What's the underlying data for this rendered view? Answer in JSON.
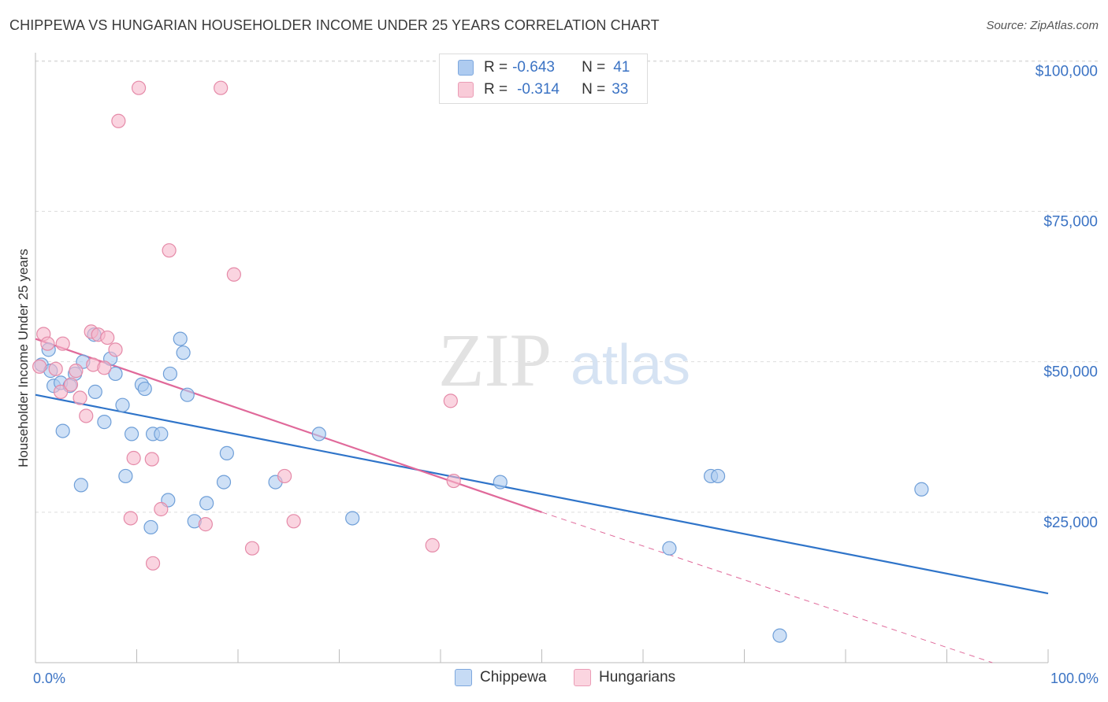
{
  "header": {
    "title": "CHIPPEWA VS HUNGARIAN HOUSEHOLDER INCOME UNDER 25 YEARS CORRELATION CHART",
    "source": "Source: ZipAtlas.com"
  },
  "watermark": {
    "zip": "ZIP",
    "atlas": "atlas"
  },
  "legend_top": {
    "rows": [
      {
        "r_label": "R =",
        "r_value": "-0.643",
        "n_label": "N =",
        "n_value": "41",
        "color": "#aecbf0"
      },
      {
        "r_label": "R =",
        "r_value": "-0.314",
        "n_label": "N =",
        "n_value": "33",
        "color": "#f6b8cb"
      }
    ]
  },
  "chart_data": {
    "type": "scatter",
    "title": "CHIPPEWA VS HUNGARIAN HOUSEHOLDER INCOME UNDER 25 YEARS CORRELATION CHART",
    "xlabel": "",
    "ylabel": "Householder Income Under 25 years",
    "xlim": [
      0,
      100
    ],
    "ylim": [
      0,
      102000
    ],
    "x_tick_labels": [
      "0.0%",
      "100.0%"
    ],
    "y_ticks": [
      25000,
      50000,
      75000,
      100000
    ],
    "y_tick_labels": [
      "$25,000",
      "$50,000",
      "$75,000",
      "$100,000"
    ],
    "grid": true,
    "legend_position": "bottom",
    "series": [
      {
        "name": "Chippewa",
        "color": "#aecbf0",
        "stroke": "#6f9fd8",
        "trend_color": "#2f74c9",
        "trend": {
          "x": [
            0,
            100
          ],
          "y": [
            44500,
            11500
          ]
        },
        "points": [
          [
            0.6,
            49500
          ],
          [
            1.3,
            52000
          ],
          [
            1.5,
            48500
          ],
          [
            1.8,
            46000
          ],
          [
            2.5,
            46500
          ],
          [
            2.7,
            38500
          ],
          [
            3.4,
            46000
          ],
          [
            3.9,
            48000
          ],
          [
            4.5,
            29500
          ],
          [
            4.7,
            50000
          ],
          [
            5.8,
            54500
          ],
          [
            5.9,
            45000
          ],
          [
            6.8,
            40000
          ],
          [
            7.4,
            50500
          ],
          [
            7.9,
            48000
          ],
          [
            8.6,
            42800
          ],
          [
            8.9,
            31000
          ],
          [
            9.5,
            38000
          ],
          [
            10.5,
            46200
          ],
          [
            10.8,
            45500
          ],
          [
            11.4,
            22500
          ],
          [
            11.6,
            38000
          ],
          [
            12.4,
            38000
          ],
          [
            13.1,
            27000
          ],
          [
            13.3,
            48000
          ],
          [
            14.3,
            53800
          ],
          [
            14.6,
            51500
          ],
          [
            15.0,
            44500
          ],
          [
            15.7,
            23500
          ],
          [
            16.9,
            26500
          ],
          [
            18.6,
            30000
          ],
          [
            18.9,
            34800
          ],
          [
            23.7,
            30000
          ],
          [
            28.0,
            38000
          ],
          [
            31.3,
            24000
          ],
          [
            45.9,
            30000
          ],
          [
            66.7,
            31000
          ],
          [
            67.4,
            31000
          ],
          [
            62.6,
            19000
          ],
          [
            73.5,
            4500
          ],
          [
            87.5,
            28800
          ]
        ]
      },
      {
        "name": "Hungarians",
        "color": "#f6b8cb",
        "stroke": "#e58aa8",
        "trend_color": "#e0699a",
        "trend": {
          "x": [
            0,
            50
          ],
          "y": [
            53800,
            25000
          ]
        },
        "trend_dashed": {
          "x": [
            50,
            94.5
          ],
          "y": [
            25000,
            0
          ]
        },
        "points": [
          [
            0.4,
            49200
          ],
          [
            0.8,
            54600
          ],
          [
            1.2,
            53000
          ],
          [
            2.0,
            48800
          ],
          [
            2.5,
            45000
          ],
          [
            2.7,
            53000
          ],
          [
            3.5,
            46200
          ],
          [
            4.0,
            48500
          ],
          [
            4.4,
            44000
          ],
          [
            5.0,
            41000
          ],
          [
            5.5,
            55000
          ],
          [
            5.7,
            49500
          ],
          [
            6.2,
            54500
          ],
          [
            6.8,
            49000
          ],
          [
            7.1,
            54000
          ],
          [
            7.9,
            52000
          ],
          [
            8.2,
            90000
          ],
          [
            9.4,
            24000
          ],
          [
            9.7,
            34000
          ],
          [
            10.2,
            95500
          ],
          [
            11.5,
            33800
          ],
          [
            11.6,
            16500
          ],
          [
            12.4,
            25500
          ],
          [
            13.2,
            68500
          ],
          [
            16.8,
            23000
          ],
          [
            18.3,
            95500
          ],
          [
            19.6,
            64500
          ],
          [
            21.4,
            19000
          ],
          [
            24.6,
            31000
          ],
          [
            25.5,
            23500
          ],
          [
            39.2,
            19500
          ],
          [
            41.0,
            43500
          ],
          [
            41.3,
            30200
          ]
        ]
      }
    ]
  },
  "legend_bottom": {
    "items": [
      {
        "label": "Chippewa",
        "color": "#aecbf0"
      },
      {
        "label": "Hungarians",
        "color": "#f6b8cb"
      }
    ]
  }
}
